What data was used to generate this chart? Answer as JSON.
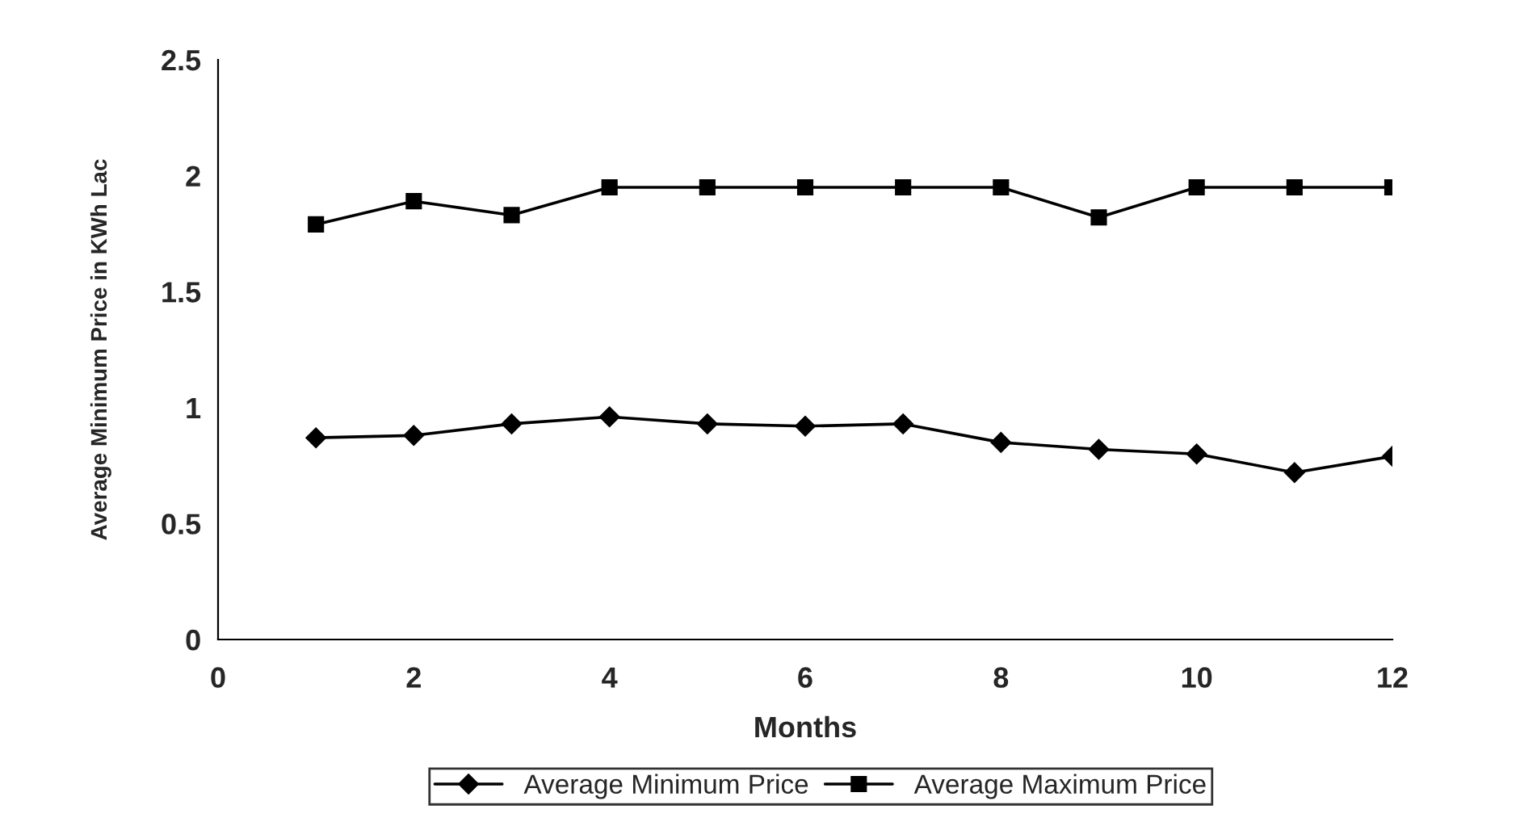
{
  "chart_data": {
    "type": "line",
    "xlabel": "Months",
    "ylabel": "Average Minimum Price in KWh Lac",
    "x": [
      1,
      2,
      3,
      4,
      5,
      6,
      7,
      8,
      9,
      10,
      11,
      12
    ],
    "series": [
      {
        "name": "Average Minimum Price",
        "color": "#000000",
        "marker": "diamond",
        "values": [
          0.87,
          0.88,
          0.93,
          0.96,
          0.93,
          0.92,
          0.93,
          0.85,
          0.82,
          0.8,
          0.72,
          0.79
        ]
      },
      {
        "name": "Average Maximum Price",
        "color": "#000000",
        "marker": "square",
        "values": [
          1.79,
          1.89,
          1.83,
          1.95,
          1.95,
          1.95,
          1.95,
          1.95,
          1.82,
          1.95,
          1.95,
          1.95
        ]
      }
    ],
    "xlim": [
      0,
      12
    ],
    "xticks": [
      0,
      2,
      4,
      6,
      8,
      10,
      12
    ],
    "ylim": [
      0,
      2.5
    ],
    "yticks": [
      0,
      0.5,
      1,
      1.5,
      2,
      2.5
    ],
    "grid": false,
    "legend": "bottom",
    "line_style": "solid"
  }
}
